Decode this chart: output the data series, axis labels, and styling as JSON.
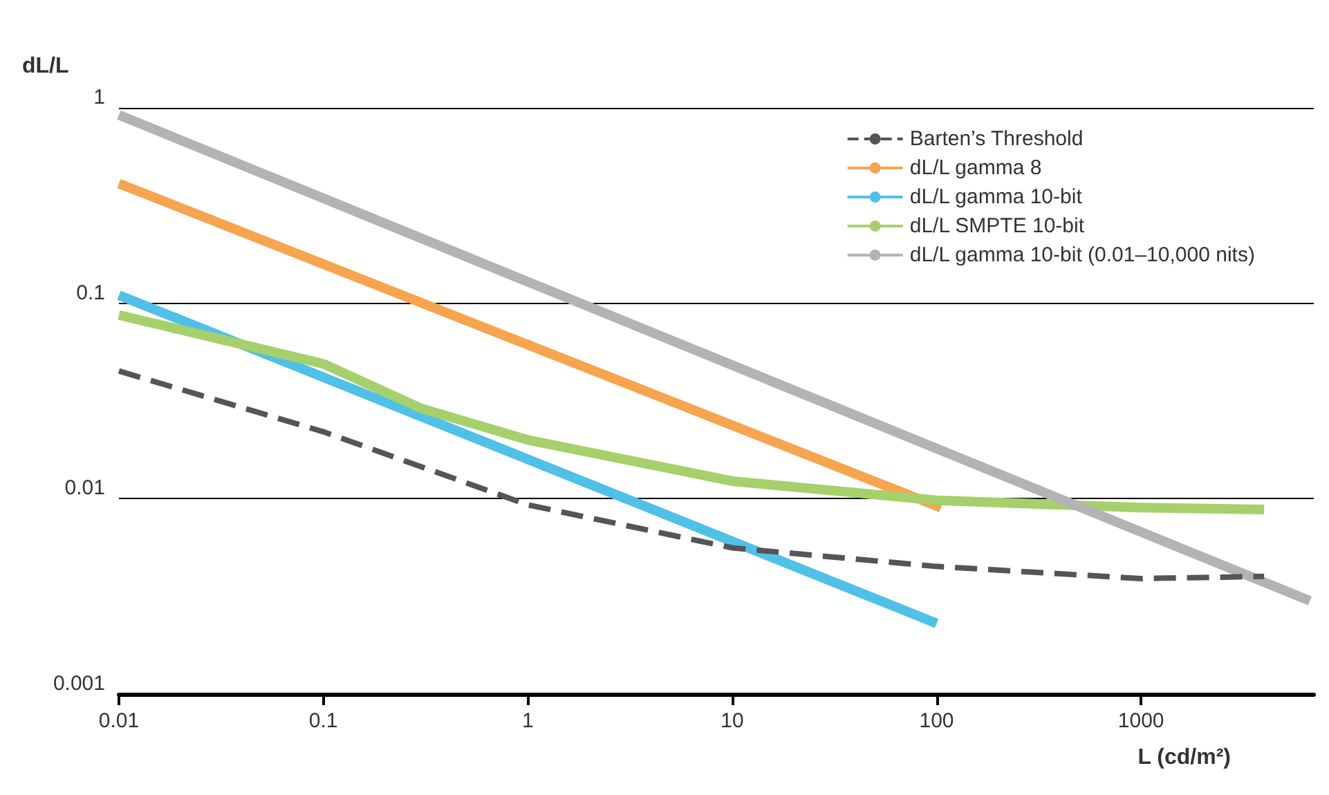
{
  "chart_data": {
    "type": "line",
    "xlabel": "L (cd/m²)",
    "ylabel": "dL/L",
    "log": "xy",
    "grid": "y",
    "legend": "top right",
    "marker": "none",
    "xlim": [
      0.01,
      7000
    ],
    "xticks": [
      0.01,
      0.1,
      1,
      10,
      100,
      1000
    ],
    "ylim": [
      0.001,
      1
    ],
    "yticks": [
      0.001,
      0.01,
      0.1,
      1
    ],
    "series": [
      {
        "name": "Barten’s Threshold",
        "color": "#555555",
        "line_style": "dashed",
        "x": [
          0.01,
          0.1,
          1,
          10,
          100,
          1000,
          4000
        ],
        "values": [
          0.045,
          0.022,
          0.0093,
          0.0056,
          0.0045,
          0.0039,
          0.004
        ]
      },
      {
        "name": "dL/L gamma 8",
        "color": "#f7a44f",
        "x": [
          0.01,
          105
        ],
        "values": [
          0.41,
          0.009
        ]
      },
      {
        "name": "dL/L gamma 10-bit",
        "color": "#4fc1e8",
        "x": [
          0.01,
          100
        ],
        "values": [
          0.11,
          0.0023
        ]
      },
      {
        "name": "dL/L SMPTE 10-bit",
        "color": "#a6d06b",
        "x": [
          0.01,
          0.1,
          0.3,
          1,
          10,
          100,
          1000,
          4000
        ],
        "values": [
          0.087,
          0.049,
          0.029,
          0.02,
          0.0123,
          0.0098,
          0.009,
          0.0088
        ]
      },
      {
        "name": "dL/L gamma 10-bit (0.01–10,000 nits)",
        "color": "#b3b3b3",
        "x": [
          0.01,
          6700
        ],
        "values": [
          0.92,
          0.003
        ]
      }
    ]
  }
}
